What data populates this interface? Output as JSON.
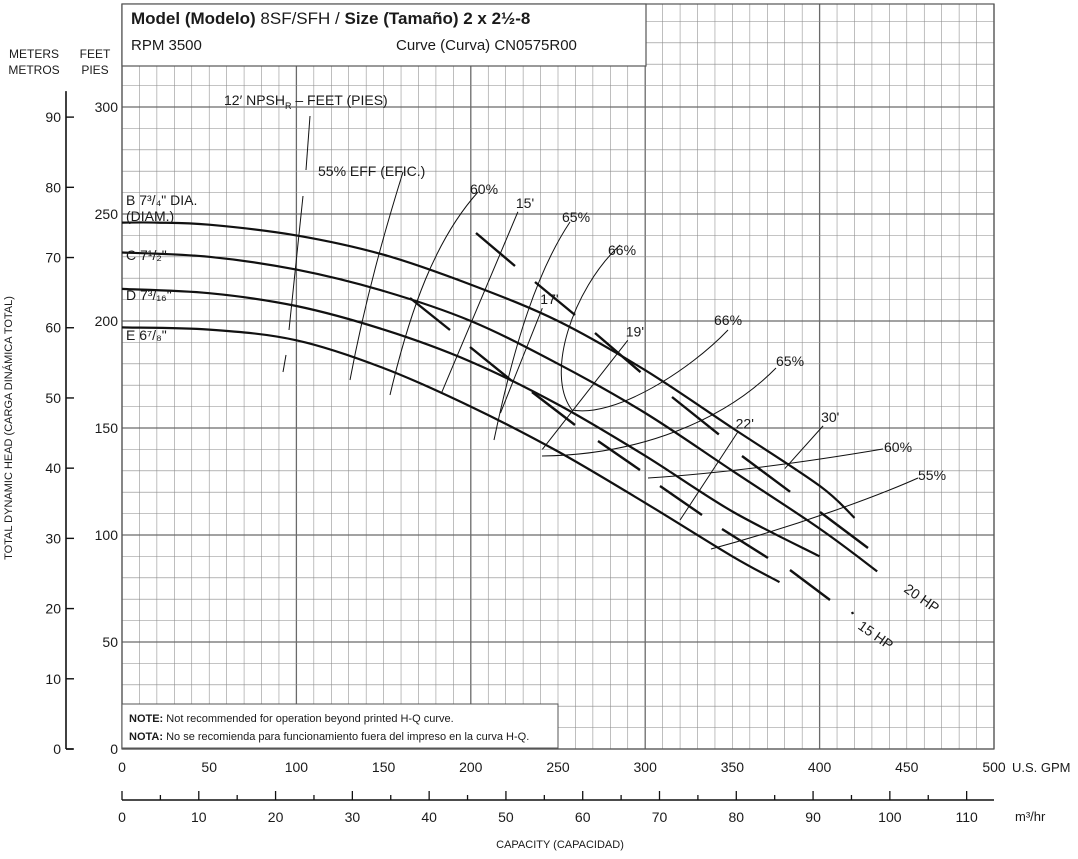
{
  "chart_data": {
    "type": "line",
    "title": "Model (Modelo) 8SF/SFH / Size (Tamaño)  2 x 2½-8",
    "title_parts": {
      "model_label": "Model",
      "model_label_es": "(Modelo)",
      "model": "8SF/SFH /",
      "size_label": "Size",
      "size_label_es": "(Tamaño)",
      "size": "2 x 2½-8"
    },
    "rpm": "RPM 3500",
    "curve_id": "Curve (Curva) CN0575R00",
    "axes": {
      "meters_label": [
        "METERS",
        "METROS"
      ],
      "feet_label": [
        "FEET",
        "PIES"
      ],
      "y_label": "TOTAL DYNAMIC HEAD (CARGA DINÁMICA TOTAL)",
      "gpm_unit": "U.S. GPM",
      "m3hr_unit": "m³/hr",
      "x_label": "CAPACITY (CAPACIDAD)",
      "gpm_ticks": [
        "0",
        "50",
        "100",
        "150",
        "200",
        "250",
        "300",
        "350",
        "400",
        "450",
        "500"
      ],
      "m3hr_ticks": [
        "0",
        "10",
        "20",
        "30",
        "40",
        "50",
        "60",
        "70",
        "80",
        "90",
        "100",
        "110"
      ],
      "feet_ticks": [
        "0",
        "50",
        "100",
        "150",
        "200",
        "250",
        "300"
      ],
      "meters_ticks": [
        "0",
        "10",
        "20",
        "30",
        "40",
        "50",
        "60",
        "70",
        "80",
        "90"
      ],
      "xlim_gpm": [
        0,
        500
      ],
      "ylim_feet": [
        0,
        320
      ],
      "grid": true
    },
    "series": [
      {
        "name": "B 7¾\" DIA. (DIAM.)",
        "label_line1": "B 7³/₄\" DIA.",
        "label_line2": "(DIAM.)",
        "x": [
          0,
          20,
          50,
          100,
          150,
          200,
          250,
          300,
          350,
          400,
          420
        ],
        "y": [
          246,
          246,
          245,
          240,
          231,
          217,
          200,
          177,
          150,
          123,
          108
        ]
      },
      {
        "name": "C 7½\"",
        "label_line1": "C 7¹/₂\"",
        "x": [
          0,
          50,
          100,
          150,
          200,
          250,
          300,
          350,
          400,
          433
        ],
        "y": [
          232,
          230,
          224,
          214,
          200,
          180,
          157,
          130,
          103,
          83
        ]
      },
      {
        "name": "D 7³⁄₁₆\"",
        "label_line1": "D 7³/₁₆\"",
        "x": [
          0,
          50,
          100,
          150,
          200,
          250,
          300,
          350,
          400
        ],
        "y": [
          215,
          213,
          207,
          196,
          181,
          161,
          137,
          111,
          90
        ]
      },
      {
        "name": "E 6⅞\"",
        "label_line1": "E 6⁷/₈\"",
        "x": [
          0,
          50,
          100,
          150,
          200,
          250,
          300,
          350,
          377
        ],
        "y": [
          197,
          196,
          191,
          178,
          160,
          139,
          115,
          90,
          78
        ]
      }
    ],
    "npsh_label": "12′ NPSH",
    "npsh_sub": "R",
    "npsh_suffix": " – FEET (PIES)",
    "npsh_lines": [
      {
        "label": "15'",
        "x": [
          227,
          183
        ],
        "y": [
          251,
          166
        ]
      },
      {
        "label": "17'",
        "x": [
          241,
          217
        ],
        "y": [
          206,
          157
        ]
      },
      {
        "label": "19'",
        "x": [
          290,
          241
        ],
        "y": [
          191,
          140
        ]
      },
      {
        "label": "22'",
        "x": [
          353,
          320
        ],
        "y": [
          148,
          107
        ]
      },
      {
        "label": "30'",
        "x": [
          402,
          380
        ],
        "y": [
          151,
          131
        ]
      }
    ],
    "efficiency_labels": [
      {
        "label": "55% EFF (EFIC.)"
      },
      {
        "label": "60%"
      },
      {
        "label": "65%"
      },
      {
        "label": "66%"
      },
      {
        "label": "66%"
      },
      {
        "label": "65%"
      },
      {
        "label": "60%"
      },
      {
        "label": "55%"
      }
    ],
    "hp_labels": [
      "20 HP",
      "15 HP"
    ],
    "note": {
      "note_label": "NOTE:",
      "note_text": " Not recommended for operation beyond printed  H-Q curve.",
      "nota_label": "NOTA:",
      "nota_text": " No se recomienda para funcionamiento fuera del impreso en la curva H-Q."
    }
  }
}
